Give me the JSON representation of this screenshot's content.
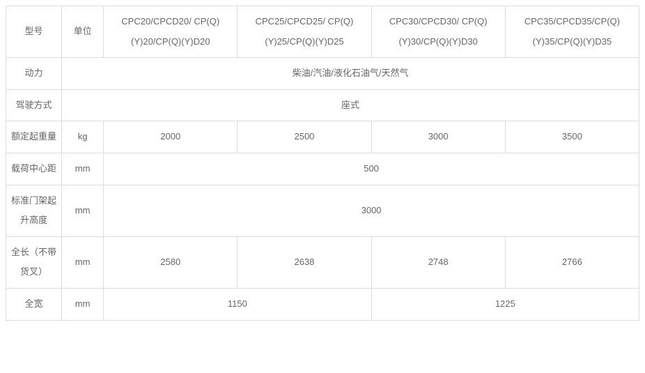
{
  "header": {
    "label_model": "型号",
    "label_unit": "单位",
    "models": [
      "CPC20/CPCD20/ CP(Q)(Y)20/CP(Q)(Y)D20",
      "CPC25/CPCD25/ CP(Q)(Y)25/CP(Q)(Y)D25",
      "CPC30/CPCD30/ CP(Q)(Y)30/CP(Q)(Y)D30",
      "CPC35/CPCD35/CP(Q)(Y)35/CP(Q)(Y)D35"
    ]
  },
  "rows": {
    "power": {
      "label": "动力",
      "unit": "",
      "merged_value": "柴油/汽油/液化石油气/天然气"
    },
    "drive_mode": {
      "label": "驾驶方式",
      "unit": "",
      "merged_value": "座式"
    },
    "rated_capacity": {
      "label": "额定起重量",
      "unit": "kg",
      "values": [
        "2000",
        "2500",
        "3000",
        "3500"
      ]
    },
    "load_center": {
      "label": "载荷中心距",
      "unit": "mm",
      "merged_value": "500"
    },
    "mast_height": {
      "label": "标准门架起升高度",
      "unit": "mm",
      "merged_value": "3000"
    },
    "overall_length": {
      "label": "全长（不带货叉）",
      "unit": "mm",
      "values": [
        "2580",
        "2638",
        "2748",
        "2766"
      ]
    },
    "overall_width": {
      "label": "全宽",
      "unit": "mm",
      "pair_values": [
        "1150",
        "1225"
      ]
    }
  },
  "style": {
    "border_color": "#dddddd",
    "text_color": "#666666",
    "background": "#ffffff",
    "font_size_pt": 10
  }
}
